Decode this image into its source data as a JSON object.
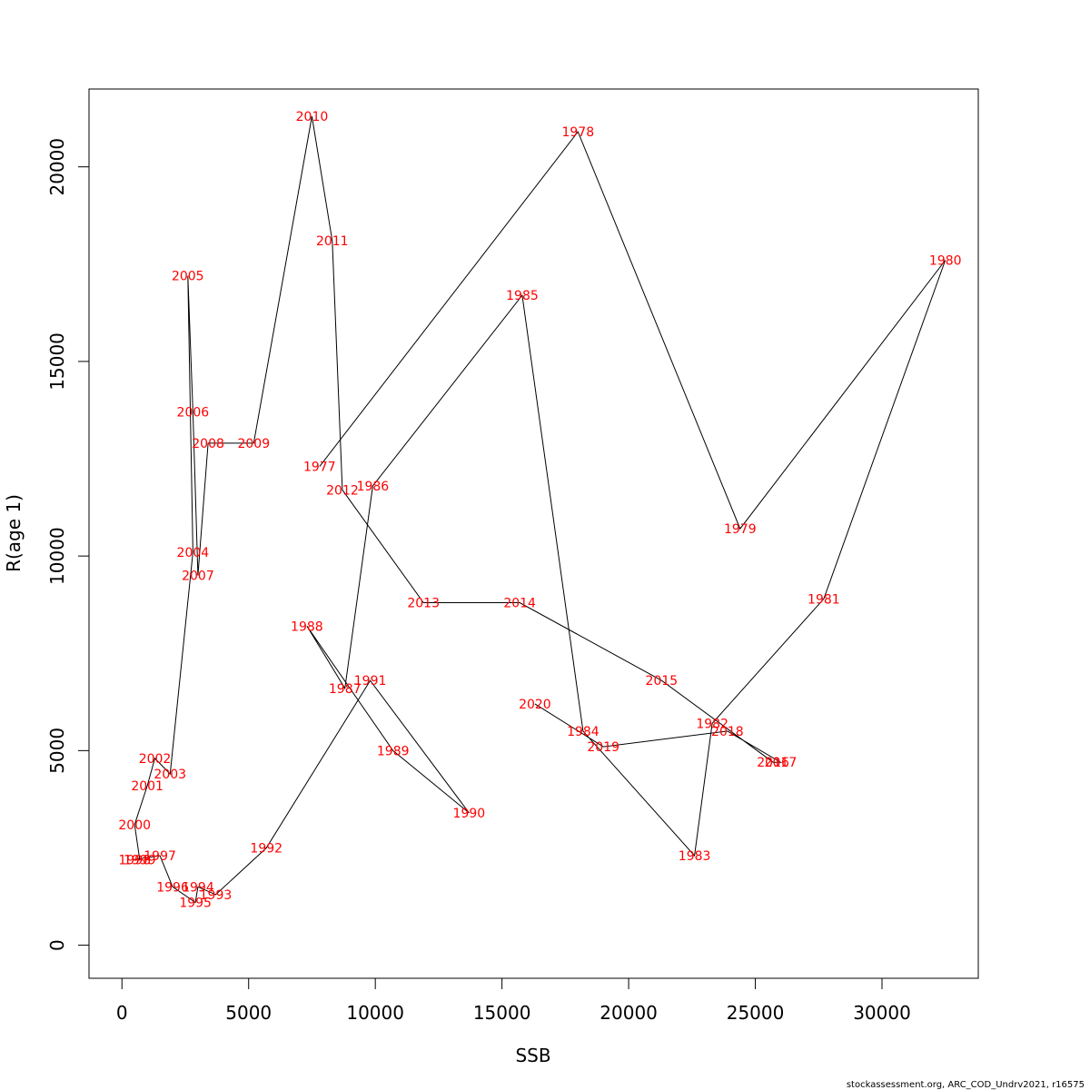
{
  "chart_data": {
    "type": "line",
    "xlabel": "SSB",
    "ylabel": "R(age 1)",
    "xlim": [
      -1300,
      33800
    ],
    "ylim": [
      -850,
      22000
    ],
    "xticks": [
      0,
      5000,
      10000,
      15000,
      20000,
      25000,
      30000
    ],
    "yticks": [
      0,
      5000,
      10000,
      15000,
      20000
    ],
    "grid": false,
    "legend": "none",
    "line_color": "#000000",
    "label_color": "#ff0000",
    "points": [
      {
        "label": "1977",
        "x": 7800,
        "y": 12300
      },
      {
        "label": "1978",
        "x": 18000,
        "y": 20900
      },
      {
        "label": "1979",
        "x": 24400,
        "y": 10700
      },
      {
        "label": "1980",
        "x": 32500,
        "y": 17600
      },
      {
        "label": "1981",
        "x": 27700,
        "y": 8900
      },
      {
        "label": "1982",
        "x": 23300,
        "y": 5700
      },
      {
        "label": "1983",
        "x": 22600,
        "y": 2300
      },
      {
        "label": "1984",
        "x": 18200,
        "y": 5500
      },
      {
        "label": "1985",
        "x": 15800,
        "y": 16700
      },
      {
        "label": "1986",
        "x": 9900,
        "y": 11800
      },
      {
        "label": "1987",
        "x": 8800,
        "y": 6600
      },
      {
        "label": "1988",
        "x": 7300,
        "y": 8200
      },
      {
        "label": "1989",
        "x": 10700,
        "y": 5000
      },
      {
        "label": "1990",
        "x": 13700,
        "y": 3400
      },
      {
        "label": "1991",
        "x": 9800,
        "y": 6800
      },
      {
        "label": "1992",
        "x": 5700,
        "y": 2500
      },
      {
        "label": "1993",
        "x": 3700,
        "y": 1300
      },
      {
        "label": "1994",
        "x": 3000,
        "y": 1500
      },
      {
        "label": "1995",
        "x": 2900,
        "y": 1100
      },
      {
        "label": "1996",
        "x": 2000,
        "y": 1500
      },
      {
        "label": "1997",
        "x": 1500,
        "y": 2300
      },
      {
        "label": "1998",
        "x": 500,
        "y": 2200
      },
      {
        "label": "1999",
        "x": 700,
        "y": 2200
      },
      {
        "label": "2000",
        "x": 500,
        "y": 3100
      },
      {
        "label": "2001",
        "x": 1000,
        "y": 4100
      },
      {
        "label": "2002",
        "x": 1300,
        "y": 4800
      },
      {
        "label": "2003",
        "x": 1900,
        "y": 4400
      },
      {
        "label": "2004",
        "x": 2800,
        "y": 10100
      },
      {
        "label": "2005",
        "x": 2600,
        "y": 17200
      },
      {
        "label": "2006",
        "x": 2800,
        "y": 13700
      },
      {
        "label": "2007",
        "x": 3000,
        "y": 9500
      },
      {
        "label": "2008",
        "x": 3400,
        "y": 12900
      },
      {
        "label": "2009",
        "x": 5200,
        "y": 12900
      },
      {
        "label": "2010",
        "x": 7500,
        "y": 21300
      },
      {
        "label": "2011",
        "x": 8300,
        "y": 18100
      },
      {
        "label": "2012",
        "x": 8700,
        "y": 11700
      },
      {
        "label": "2013",
        "x": 11900,
        "y": 8800
      },
      {
        "label": "2014",
        "x": 15700,
        "y": 8800
      },
      {
        "label": "2015",
        "x": 21300,
        "y": 6800
      },
      {
        "label": "2016",
        "x": 25700,
        "y": 4700
      },
      {
        "label": "2017",
        "x": 26000,
        "y": 4700
      },
      {
        "label": "2018",
        "x": 23900,
        "y": 5500
      },
      {
        "label": "2019",
        "x": 19000,
        "y": 5100
      },
      {
        "label": "2020",
        "x": 16300,
        "y": 6200
      }
    ]
  },
  "footer": "stockassessment.org, ARC_COD_Undrv2021, r16575"
}
